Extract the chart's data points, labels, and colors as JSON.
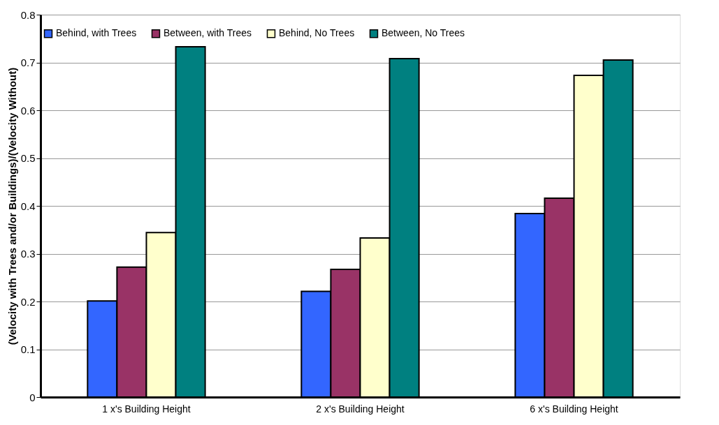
{
  "chart_data": {
    "type": "bar",
    "ylabel": "(Velocity with Trees and/or Buildings)/(Velocity Without)",
    "categories": [
      "1 x's Building Height",
      "2 x's Building Height",
      "6 x's Building Height"
    ],
    "series": [
      {
        "name": "Behind, with Trees",
        "color": "#3366ff",
        "values": [
          0.201,
          0.221,
          0.384
        ]
      },
      {
        "name": "Between, with Trees",
        "color": "#993366",
        "values": [
          0.272,
          0.267,
          0.416
        ]
      },
      {
        "name": "Behind, No Trees",
        "color": "#ffffcc",
        "values": [
          0.344,
          0.333,
          0.673
        ]
      },
      {
        "name": "Between, No Trees",
        "color": "#008080",
        "values": [
          0.733,
          0.708,
          0.705
        ]
      }
    ],
    "ylim": [
      0,
      0.8
    ],
    "yticks": [
      0,
      0.1,
      0.2,
      0.3,
      0.4,
      0.5,
      0.6,
      0.7,
      0.8
    ],
    "grid": "y",
    "legend": "top"
  }
}
